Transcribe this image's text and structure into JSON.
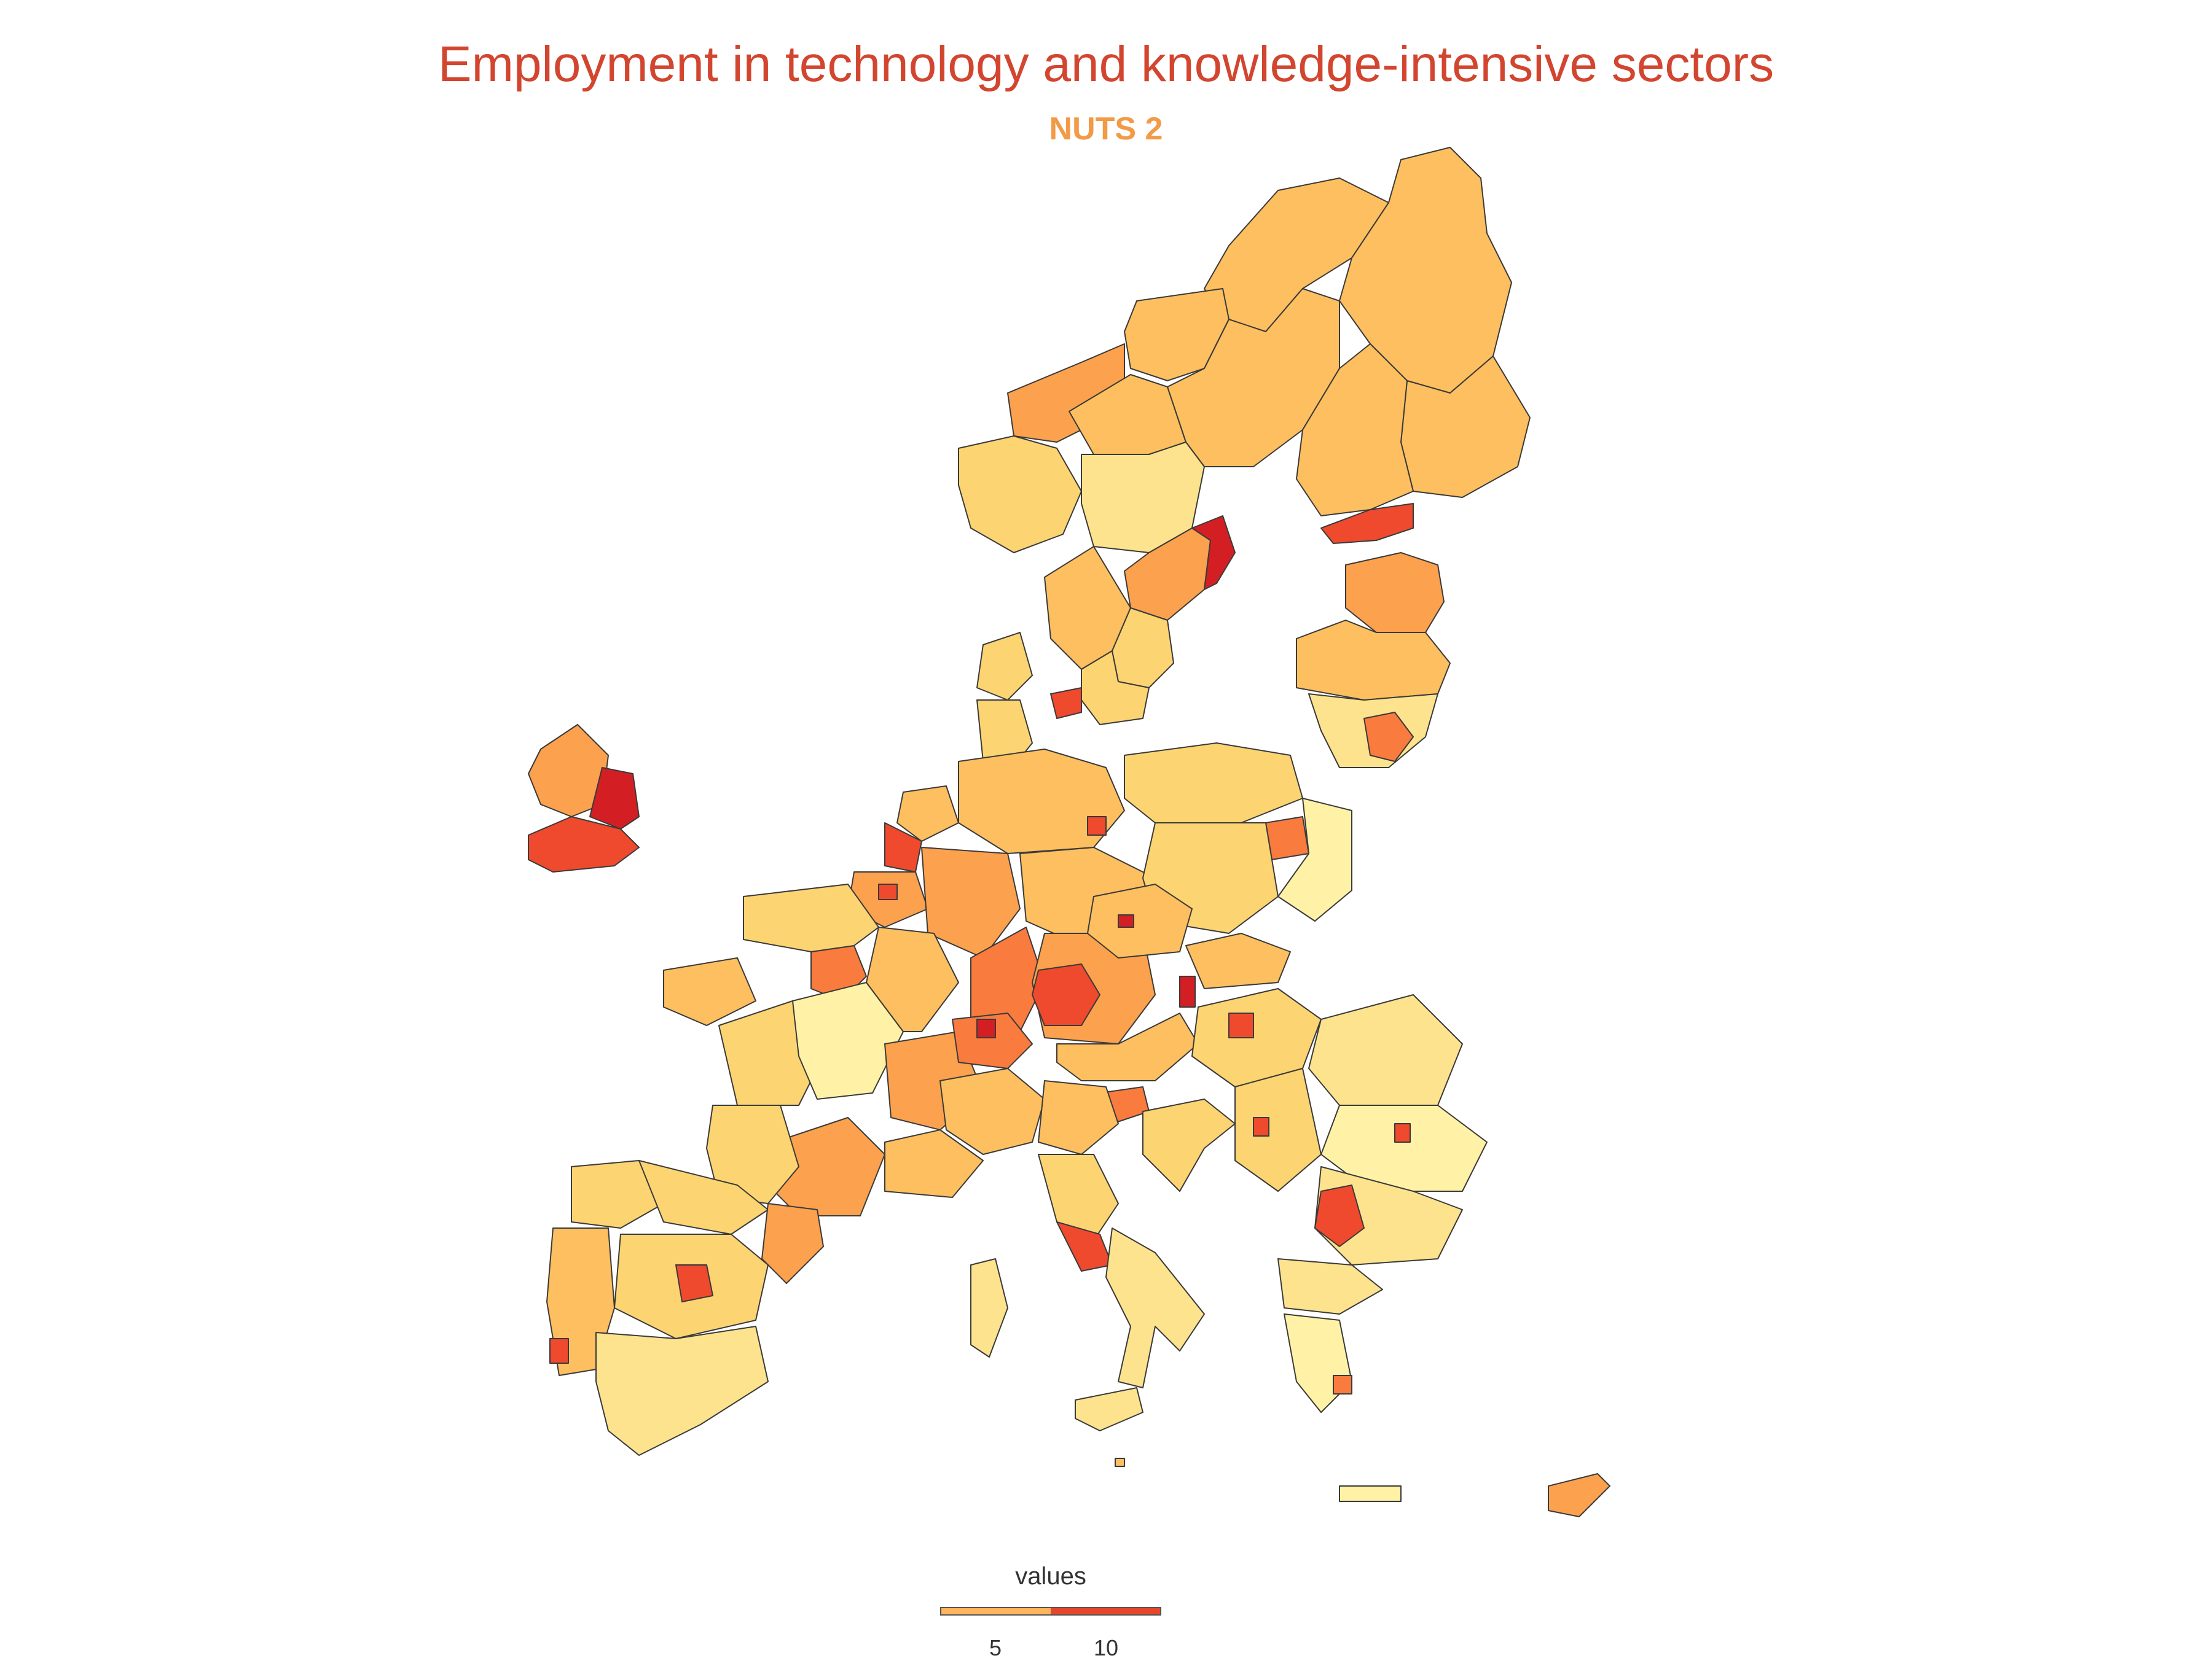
{
  "title": "Employment in technology and knowledge-intensive sectors",
  "subtitle": "NUTS 2",
  "legend": {
    "title": "values",
    "ticks": [
      "5",
      "10"
    ],
    "colors": [
      "#ffb55c",
      "#e8452b"
    ]
  },
  "palette": {
    "very_low": "#fff2a6",
    "low": "#fde38d",
    "medium_low": "#fcd472",
    "medium": "#fdbf5f",
    "medium_high": "#fca14d",
    "high": "#f97b3e",
    "very_high": "#ef4a2e",
    "max": "#d31f24"
  },
  "map": {
    "title_color": "#d2452f",
    "subtitle_color": "#f29a45",
    "background": "#ffffff"
  }
}
